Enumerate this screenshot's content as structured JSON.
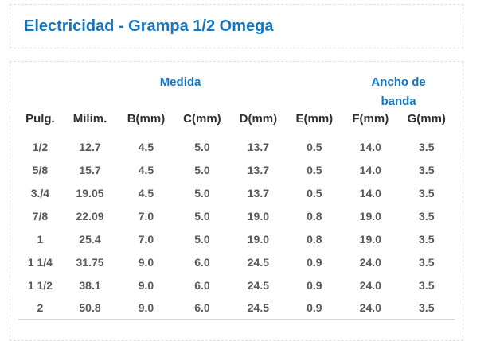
{
  "page": {
    "title": "Electricidad - Grampa 1/2 Omega"
  },
  "table": {
    "group_headers": [
      {
        "label": "Medida",
        "colspan": 6
      },
      {
        "label": "Ancho de banda",
        "colspan": 2
      }
    ],
    "columns": [
      "Pulg.",
      "Milím.",
      "B(mm)",
      "C(mm)",
      "D(mm)",
      "E(mm)",
      "F(mm)",
      "G(mm)"
    ],
    "rows": [
      [
        "1/2",
        "12.7",
        "4.5",
        "5.0",
        "13.7",
        "0.5",
        "14.0",
        "3.5"
      ],
      [
        "5/8",
        "15.7",
        "4.5",
        "5.0",
        "13.7",
        "0.5",
        "14.0",
        "3.5"
      ],
      [
        "3./4",
        "19.05",
        "4.5",
        "5.0",
        "13.7",
        "0.5",
        "14.0",
        "3.5"
      ],
      [
        "7/8",
        "22.09",
        "7.0",
        "5.0",
        "19.0",
        "0.8",
        "19.0",
        "3.5"
      ],
      [
        "1",
        "25.4",
        "7.0",
        "5.0",
        "19.0",
        "0.8",
        "19.0",
        "3.5"
      ],
      [
        "1 1/4",
        "31.75",
        "9.0",
        "6.0",
        "24.5",
        "0.9",
        "24.0",
        "3.5"
      ],
      [
        "1 1/2",
        "38.1",
        "9.0",
        "6.0",
        "24.5",
        "0.9",
        "24.0",
        "3.5"
      ],
      [
        "2",
        "50.8",
        "9.0",
        "6.0",
        "24.5",
        "0.9",
        "24.0",
        "3.5"
      ]
    ]
  },
  "colors": {
    "accent_blue": "#1576c2",
    "header_text": "#2f2f2f",
    "body_text": "#57585a",
    "border_dashed": "#dddddd",
    "table_bottom_border": "#d9d9d9"
  }
}
